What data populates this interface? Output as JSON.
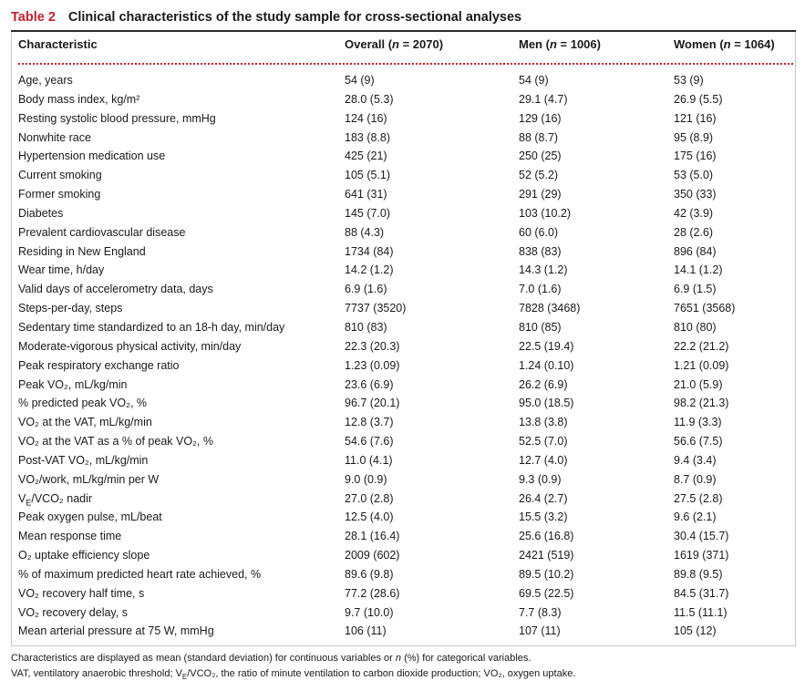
{
  "caption": {
    "label": "Table 2",
    "title": "Clinical characteristics of the study sample for cross-sectional analyses"
  },
  "header": {
    "characteristic": "Characteristic",
    "overall": "Overall (n = 2070)",
    "men": "Men (n = 1006)",
    "women": "Women (n = 1064)"
  },
  "rows": [
    {
      "label": "Age, years",
      "overall": "54 (9)",
      "men": "54 (9)",
      "women": "53 (9)"
    },
    {
      "label": "Body mass index, kg/m²",
      "overall": "28.0 (5.3)",
      "men": "29.1 (4.7)",
      "women": "26.9 (5.5)"
    },
    {
      "label": "Resting systolic blood pressure, mmHg",
      "overall": "124 (16)",
      "men": "129 (16)",
      "women": "121 (16)"
    },
    {
      "label": "Nonwhite race",
      "overall": "183 (8.8)",
      "men": "88 (8.7)",
      "women": "95 (8.9)"
    },
    {
      "label": "Hypertension medication use",
      "overall": "425 (21)",
      "men": "250 (25)",
      "women": "175 (16)"
    },
    {
      "label": "Current smoking",
      "overall": "105 (5.1)",
      "men": "52 (5.2)",
      "women": "53 (5.0)"
    },
    {
      "label": "Former smoking",
      "overall": "641 (31)",
      "men": "291 (29)",
      "women": "350 (33)"
    },
    {
      "label": "Diabetes",
      "overall": "145 (7.0)",
      "men": "103 (10.2)",
      "women": "42 (3.9)"
    },
    {
      "label": "Prevalent cardiovascular disease",
      "overall": "88 (4.3)",
      "men": "60 (6.0)",
      "women": "28 (2.6)"
    },
    {
      "label": "Residing in New England",
      "overall": "1734 (84)",
      "men": "838 (83)",
      "women": "896 (84)"
    },
    {
      "label": "Wear time, h/day",
      "overall": "14.2 (1.2)",
      "men": "14.3 (1.2)",
      "women": "14.1 (1.2)"
    },
    {
      "label": "Valid days of accelerometry data, days",
      "overall": "6.9 (1.6)",
      "men": "7.0 (1.6)",
      "women": "6.9 (1.5)"
    },
    {
      "label": "Steps-per-day, steps",
      "overall": "7737 (3520)",
      "men": "7828 (3468)",
      "women": "7651 (3568)"
    },
    {
      "label": "Sedentary time standardized to an 18-h day, min/day",
      "overall": "810 (83)",
      "men": "810 (85)",
      "women": "810 (80)"
    },
    {
      "label": "Moderate-vigorous physical activity, min/day",
      "overall": "22.3 (20.3)",
      "men": "22.5 (19.4)",
      "women": "22.2 (21.2)"
    },
    {
      "label": "Peak respiratory exchange ratio",
      "overall": "1.23 (0.09)",
      "men": "1.24 (0.10)",
      "women": "1.21 (0.09)"
    },
    {
      "label": "Peak VO₂, mL/kg/min",
      "overall": "23.6 (6.9)",
      "men": "26.2 (6.9)",
      "women": "21.0 (5.9)"
    },
    {
      "label": "% predicted peak VO₂, %",
      "overall": "96.7 (20.1)",
      "men": "95.0 (18.5)",
      "women": "98.2 (21.3)"
    },
    {
      "label": "VO₂ at the VAT, mL/kg/min",
      "overall": "12.8 (3.7)",
      "men": "13.8 (3.8)",
      "women": "11.9 (3.3)"
    },
    {
      "label": "VO₂ at the VAT as a % of peak VO₂, %",
      "overall": "54.6 (7.6)",
      "men": "52.5 (7.0)",
      "women": "56.6 (7.5)"
    },
    {
      "label": "Post-VAT VO₂, mL/kg/min",
      "overall": "11.0 (4.1)",
      "men": "12.7 (4.0)",
      "women": "9.4 (3.4)"
    },
    {
      "label": "VO₂/work, mL/kg/min per W",
      "overall": "9.0 (0.9)",
      "men": "9.3 (0.9)",
      "women": "8.7 (0.9)"
    },
    {
      "label": "V_E/VCO₂ nadir",
      "overall": "27.0 (2.8)",
      "men": "26.4 (2.7)",
      "women": "27.5 (2.8)"
    },
    {
      "label": "Peak oxygen pulse, mL/beat",
      "overall": "12.5 (4.0)",
      "men": "15.5 (3.2)",
      "women": "9.6 (2.1)"
    },
    {
      "label": "Mean response time",
      "overall": "28.1 (16.4)",
      "men": "25.6 (16.8)",
      "women": "30.4 (15.7)"
    },
    {
      "label": "O₂ uptake efficiency slope",
      "overall": "2009 (602)",
      "men": "2421 (519)",
      "women": "1619 (371)"
    },
    {
      "label": "% of maximum predicted heart rate achieved, %",
      "overall": "89.6 (9.8)",
      "men": "89.5 (10.2)",
      "women": "89.8 (9.5)"
    },
    {
      "label": "VO₂ recovery half time, s",
      "overall": "77.2 (28.6)",
      "men": "69.5 (22.5)",
      "women": "84.5 (31.7)"
    },
    {
      "label": "VO₂ recovery delay, s",
      "overall": "9.7 (10.0)",
      "men": "7.7 (8.3)",
      "women": "11.5 (11.1)"
    },
    {
      "label": "Mean arterial pressure at 75 W, mmHg",
      "overall": "106 (11)",
      "men": "107 (11)",
      "women": "105 (12)"
    }
  ],
  "notes": [
    "Characteristics are displayed as mean (standard deviation) for continuous variables or n (%) for categorical variables.",
    "VAT, ventilatory anaerobic threshold; V_E/VCO₂, the ratio of minute ventilation to carbon dioxide production; VO₂, oxygen uptake."
  ]
}
